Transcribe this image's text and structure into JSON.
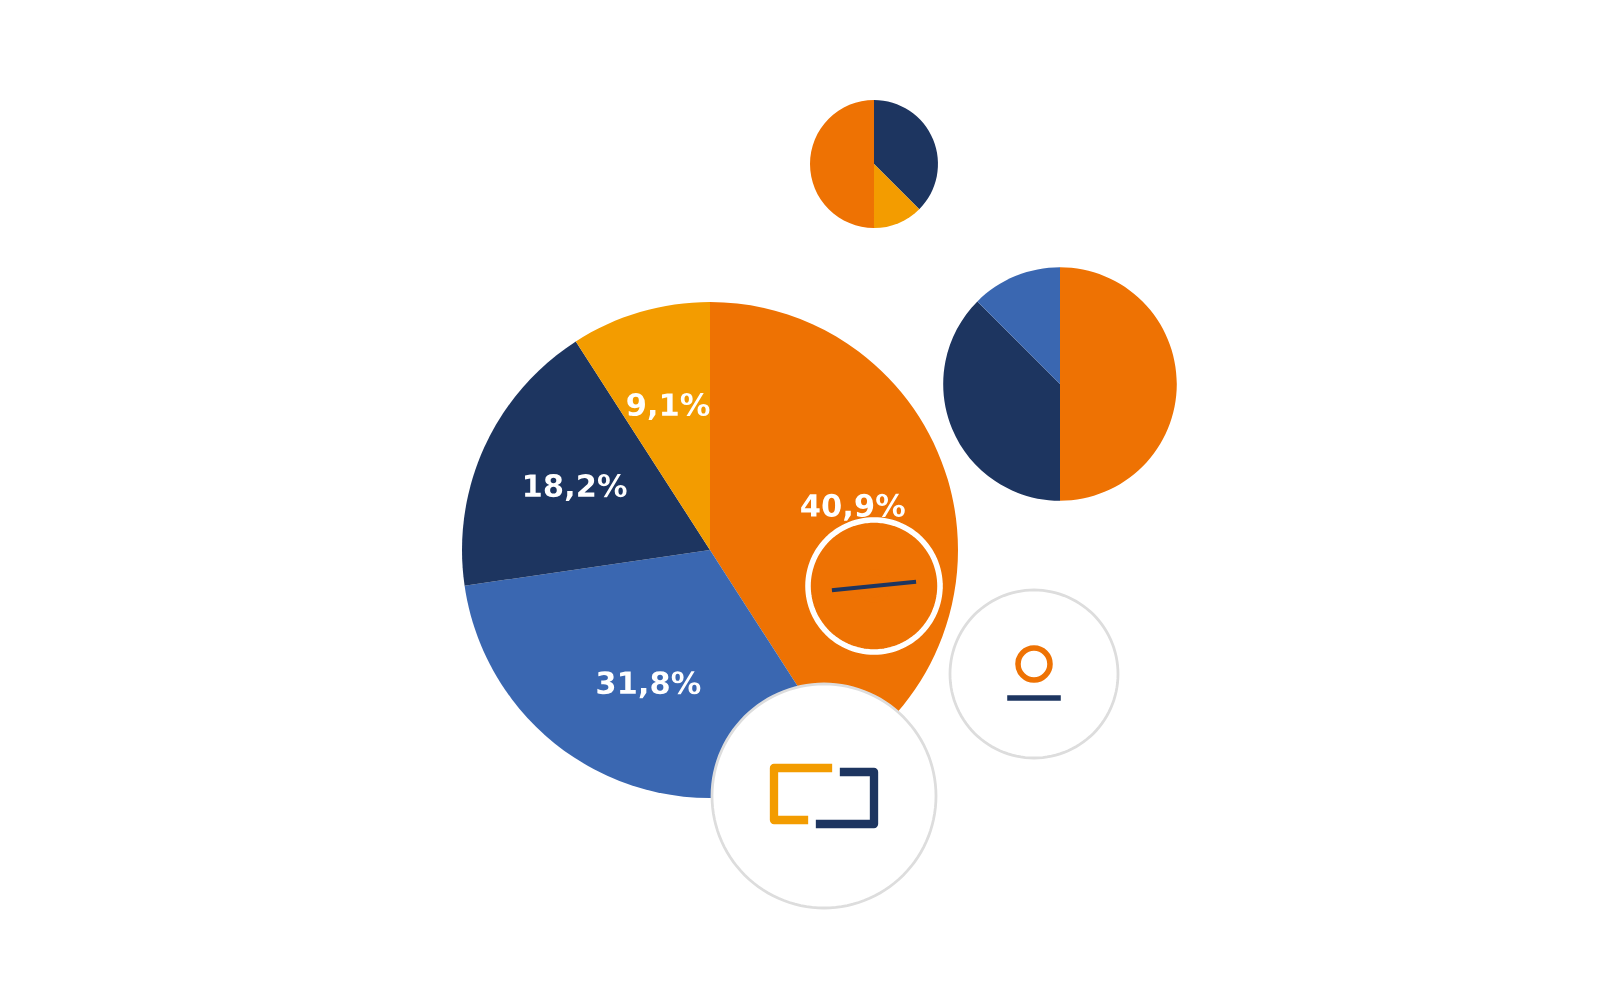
{
  "chart_data": [
    {
      "type": "pie",
      "categories": [
        null,
        null,
        null
      ],
      "values": [
        37.5,
        12.5,
        50
      ],
      "colors": [
        "#1d3560",
        "#f39c00",
        "#ee7203"
      ]
    },
    {
      "type": "pie",
      "categories": [
        null,
        null,
        null
      ],
      "values": [
        50,
        37.5,
        12.5
      ],
      "colors": [
        "#ee7203",
        "#1d3560",
        "#3a67b1"
      ]
    },
    {
      "type": "pie",
      "categories": [
        null,
        null,
        null,
        null
      ],
      "values": [
        40.9,
        31.8,
        18.2,
        9.1
      ],
      "colors": [
        "#ee7203",
        "#3a67b1",
        "#1d3560",
        "#f39c00"
      ],
      "value_labels": [
        "40,9%",
        "31,8%",
        "18,2%",
        "9,1%"
      ]
    }
  ]
}
